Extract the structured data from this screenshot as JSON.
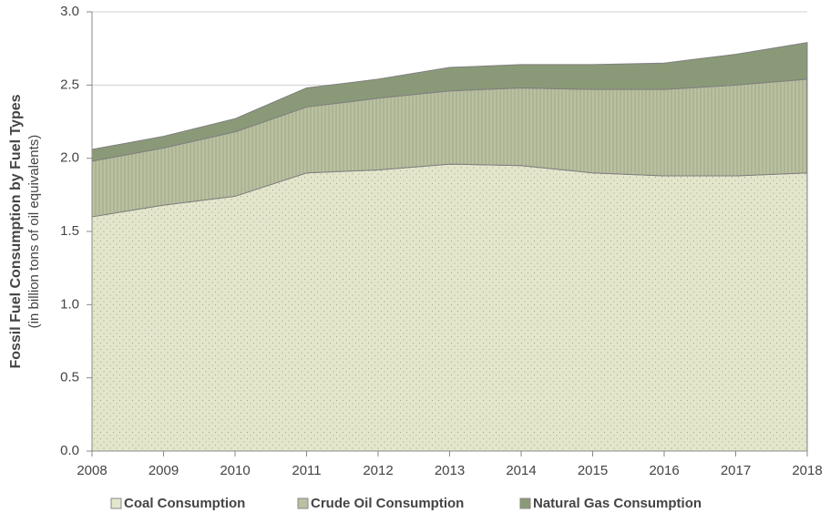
{
  "chart_data": {
    "type": "stacked_area",
    "ylabel": "Fossil Fuel Consumption by Fuel Types",
    "ylabel_sub": "(in billion tons of oil equivalents)",
    "x": [
      2008,
      2009,
      2010,
      2011,
      2012,
      2013,
      2014,
      2015,
      2016,
      2017,
      2018
    ],
    "xlim": [
      2008,
      2018
    ],
    "xticks": [
      2008,
      2009,
      2010,
      2011,
      2012,
      2013,
      2014,
      2015,
      2016,
      2017,
      2018
    ],
    "ylim": [
      0,
      3
    ],
    "yticks": [
      {
        "value": 0,
        "label": "0.0"
      },
      {
        "value": 0.5,
        "label": "0.5"
      },
      {
        "value": 1,
        "label": "1.0"
      },
      {
        "value": 1.5,
        "label": "1.5"
      },
      {
        "value": 2,
        "label": "2.0"
      },
      {
        "value": 2.5,
        "label": "2.5"
      },
      {
        "value": 3,
        "label": "3.0"
      }
    ],
    "grid": true,
    "legend": "bottom",
    "series": [
      {
        "name": "Coal Consumption",
        "color": "#e4e6cc",
        "values": [
          1.6,
          1.68,
          1.74,
          1.9,
          1.92,
          1.96,
          1.95,
          1.9,
          1.88,
          1.88,
          1.9
        ]
      },
      {
        "name": "Crude Oil Consumption",
        "color": "#b9c1a0",
        "values": [
          0.38,
          0.39,
          0.44,
          0.45,
          0.49,
          0.5,
          0.53,
          0.57,
          0.59,
          0.62,
          0.64
        ]
      },
      {
        "name": "Natural Gas Consumption",
        "color": "#8a9a78",
        "values": [
          0.08,
          0.08,
          0.09,
          0.13,
          0.13,
          0.16,
          0.16,
          0.17,
          0.18,
          0.21,
          0.25
        ]
      }
    ]
  }
}
